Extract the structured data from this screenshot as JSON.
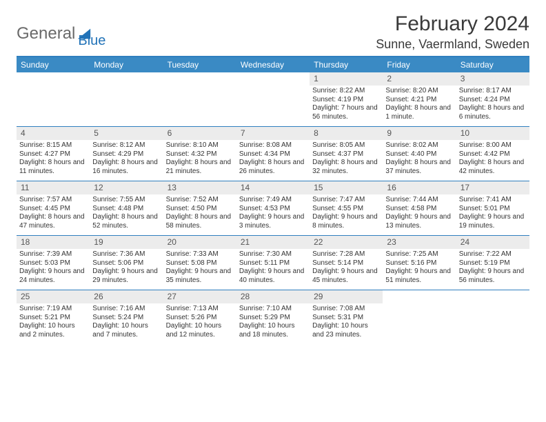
{
  "logo": {
    "text_general": "General",
    "text_blue": "Blue"
  },
  "title": {
    "month": "February 2024",
    "location": "Sunne, Vaermland, Sweden"
  },
  "colors": {
    "header_bar": "#3a8ac4",
    "header_border": "#2f7fbf",
    "daynum_bg": "#ececec",
    "text": "#333333",
    "logo_gray": "#6a6a6a",
    "logo_blue": "#2273b8",
    "background": "#ffffff"
  },
  "typography": {
    "title_size_pt": 22,
    "location_size_pt": 13,
    "dayhead_size_pt": 9,
    "body_size_pt": 7.5
  },
  "day_headers": [
    "Sunday",
    "Monday",
    "Tuesday",
    "Wednesday",
    "Thursday",
    "Friday",
    "Saturday"
  ],
  "weeks": [
    [
      {
        "day": "",
        "sunrise": "",
        "sunset": "",
        "daylight": ""
      },
      {
        "day": "",
        "sunrise": "",
        "sunset": "",
        "daylight": ""
      },
      {
        "day": "",
        "sunrise": "",
        "sunset": "",
        "daylight": ""
      },
      {
        "day": "",
        "sunrise": "",
        "sunset": "",
        "daylight": ""
      },
      {
        "day": "1",
        "sunrise": "Sunrise: 8:22 AM",
        "sunset": "Sunset: 4:19 PM",
        "daylight": "Daylight: 7 hours and 56 minutes."
      },
      {
        "day": "2",
        "sunrise": "Sunrise: 8:20 AM",
        "sunset": "Sunset: 4:21 PM",
        "daylight": "Daylight: 8 hours and 1 minute."
      },
      {
        "day": "3",
        "sunrise": "Sunrise: 8:17 AM",
        "sunset": "Sunset: 4:24 PM",
        "daylight": "Daylight: 8 hours and 6 minutes."
      }
    ],
    [
      {
        "day": "4",
        "sunrise": "Sunrise: 8:15 AM",
        "sunset": "Sunset: 4:27 PM",
        "daylight": "Daylight: 8 hours and 11 minutes."
      },
      {
        "day": "5",
        "sunrise": "Sunrise: 8:12 AM",
        "sunset": "Sunset: 4:29 PM",
        "daylight": "Daylight: 8 hours and 16 minutes."
      },
      {
        "day": "6",
        "sunrise": "Sunrise: 8:10 AM",
        "sunset": "Sunset: 4:32 PM",
        "daylight": "Daylight: 8 hours and 21 minutes."
      },
      {
        "day": "7",
        "sunrise": "Sunrise: 8:08 AM",
        "sunset": "Sunset: 4:34 PM",
        "daylight": "Daylight: 8 hours and 26 minutes."
      },
      {
        "day": "8",
        "sunrise": "Sunrise: 8:05 AM",
        "sunset": "Sunset: 4:37 PM",
        "daylight": "Daylight: 8 hours and 32 minutes."
      },
      {
        "day": "9",
        "sunrise": "Sunrise: 8:02 AM",
        "sunset": "Sunset: 4:40 PM",
        "daylight": "Daylight: 8 hours and 37 minutes."
      },
      {
        "day": "10",
        "sunrise": "Sunrise: 8:00 AM",
        "sunset": "Sunset: 4:42 PM",
        "daylight": "Daylight: 8 hours and 42 minutes."
      }
    ],
    [
      {
        "day": "11",
        "sunrise": "Sunrise: 7:57 AM",
        "sunset": "Sunset: 4:45 PM",
        "daylight": "Daylight: 8 hours and 47 minutes."
      },
      {
        "day": "12",
        "sunrise": "Sunrise: 7:55 AM",
        "sunset": "Sunset: 4:48 PM",
        "daylight": "Daylight: 8 hours and 52 minutes."
      },
      {
        "day": "13",
        "sunrise": "Sunrise: 7:52 AM",
        "sunset": "Sunset: 4:50 PM",
        "daylight": "Daylight: 8 hours and 58 minutes."
      },
      {
        "day": "14",
        "sunrise": "Sunrise: 7:49 AM",
        "sunset": "Sunset: 4:53 PM",
        "daylight": "Daylight: 9 hours and 3 minutes."
      },
      {
        "day": "15",
        "sunrise": "Sunrise: 7:47 AM",
        "sunset": "Sunset: 4:55 PM",
        "daylight": "Daylight: 9 hours and 8 minutes."
      },
      {
        "day": "16",
        "sunrise": "Sunrise: 7:44 AM",
        "sunset": "Sunset: 4:58 PM",
        "daylight": "Daylight: 9 hours and 13 minutes."
      },
      {
        "day": "17",
        "sunrise": "Sunrise: 7:41 AM",
        "sunset": "Sunset: 5:01 PM",
        "daylight": "Daylight: 9 hours and 19 minutes."
      }
    ],
    [
      {
        "day": "18",
        "sunrise": "Sunrise: 7:39 AM",
        "sunset": "Sunset: 5:03 PM",
        "daylight": "Daylight: 9 hours and 24 minutes."
      },
      {
        "day": "19",
        "sunrise": "Sunrise: 7:36 AM",
        "sunset": "Sunset: 5:06 PM",
        "daylight": "Daylight: 9 hours and 29 minutes."
      },
      {
        "day": "20",
        "sunrise": "Sunrise: 7:33 AM",
        "sunset": "Sunset: 5:08 PM",
        "daylight": "Daylight: 9 hours and 35 minutes."
      },
      {
        "day": "21",
        "sunrise": "Sunrise: 7:30 AM",
        "sunset": "Sunset: 5:11 PM",
        "daylight": "Daylight: 9 hours and 40 minutes."
      },
      {
        "day": "22",
        "sunrise": "Sunrise: 7:28 AM",
        "sunset": "Sunset: 5:14 PM",
        "daylight": "Daylight: 9 hours and 45 minutes."
      },
      {
        "day": "23",
        "sunrise": "Sunrise: 7:25 AM",
        "sunset": "Sunset: 5:16 PM",
        "daylight": "Daylight: 9 hours and 51 minutes."
      },
      {
        "day": "24",
        "sunrise": "Sunrise: 7:22 AM",
        "sunset": "Sunset: 5:19 PM",
        "daylight": "Daylight: 9 hours and 56 minutes."
      }
    ],
    [
      {
        "day": "25",
        "sunrise": "Sunrise: 7:19 AM",
        "sunset": "Sunset: 5:21 PM",
        "daylight": "Daylight: 10 hours and 2 minutes."
      },
      {
        "day": "26",
        "sunrise": "Sunrise: 7:16 AM",
        "sunset": "Sunset: 5:24 PM",
        "daylight": "Daylight: 10 hours and 7 minutes."
      },
      {
        "day": "27",
        "sunrise": "Sunrise: 7:13 AM",
        "sunset": "Sunset: 5:26 PM",
        "daylight": "Daylight: 10 hours and 12 minutes."
      },
      {
        "day": "28",
        "sunrise": "Sunrise: 7:10 AM",
        "sunset": "Sunset: 5:29 PM",
        "daylight": "Daylight: 10 hours and 18 minutes."
      },
      {
        "day": "29",
        "sunrise": "Sunrise: 7:08 AM",
        "sunset": "Sunset: 5:31 PM",
        "daylight": "Daylight: 10 hours and 23 minutes."
      },
      {
        "day": "",
        "sunrise": "",
        "sunset": "",
        "daylight": ""
      },
      {
        "day": "",
        "sunrise": "",
        "sunset": "",
        "daylight": ""
      }
    ]
  ]
}
